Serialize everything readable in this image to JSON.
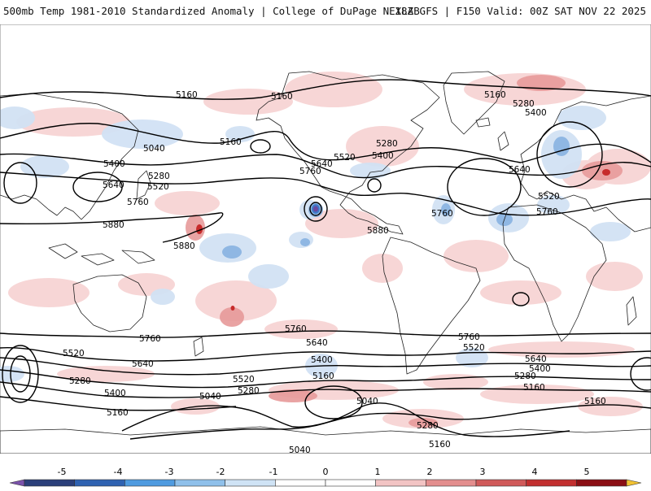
{
  "header": {
    "title_left": "500mb Temp 1981-2010 Standardized Anomaly | College of DuPage NEXLAB",
    "title_right": "18Z GFS | F150 Valid: 00Z SAT NOV 22 2025"
  },
  "map": {
    "projection": "equirectangular-global",
    "fill_variable": "temperature standardized anomaly",
    "contour_variable": "500mb geopotential height",
    "colors": {
      "ocean": "#ffffff",
      "coast": "#222222",
      "contour": "#000000",
      "warm_light": "#f7d4d4",
      "warm_mid": "#e79a9a",
      "warm_strong": "#c72b2b",
      "cold_light": "#d2e2f4",
      "cold_mid": "#8fb7e3",
      "cold_strong": "#3f79c8",
      "cold_deep": "#6a4aa0"
    },
    "contour_labels": [
      {
        "id": "c1",
        "text": "5160"
      },
      {
        "id": "c2",
        "text": "5160"
      },
      {
        "id": "c3",
        "text": "5160"
      },
      {
        "id": "c4",
        "text": "5280"
      },
      {
        "id": "c5",
        "text": "5400"
      },
      {
        "id": "c6",
        "text": "5040"
      },
      {
        "id": "c7",
        "text": "5160"
      },
      {
        "id": "c8",
        "text": "5400"
      },
      {
        "id": "c9",
        "text": "5280"
      },
      {
        "id": "c10",
        "text": "5520"
      },
      {
        "id": "c11",
        "text": "5640"
      },
      {
        "id": "c12",
        "text": "5760"
      },
      {
        "id": "c13",
        "text": "5880"
      },
      {
        "id": "c14",
        "text": "5880"
      },
      {
        "id": "c15",
        "text": "5520"
      },
      {
        "id": "c16",
        "text": "5400"
      },
      {
        "id": "c17",
        "text": "5640"
      },
      {
        "id": "c18",
        "text": "5760"
      },
      {
        "id": "c19",
        "text": "5280"
      },
      {
        "id": "c20",
        "text": "5880"
      },
      {
        "id": "c21",
        "text": "5760"
      },
      {
        "id": "c22",
        "text": "5640"
      },
      {
        "id": "c23",
        "text": "5520"
      },
      {
        "id": "c24",
        "text": "5760"
      },
      {
        "id": "c25",
        "text": "5760"
      },
      {
        "id": "c26",
        "text": "5520"
      },
      {
        "id": "c27",
        "text": "5640"
      },
      {
        "id": "c28",
        "text": "5280"
      },
      {
        "id": "c29",
        "text": "5400"
      },
      {
        "id": "c30",
        "text": "5160"
      },
      {
        "id": "c31",
        "text": "5040"
      },
      {
        "id": "c32",
        "text": "5520"
      },
      {
        "id": "c33",
        "text": "5280"
      },
      {
        "id": "c34",
        "text": "5760"
      },
      {
        "id": "c35",
        "text": "5640"
      },
      {
        "id": "c36",
        "text": "5400"
      },
      {
        "id": "c37",
        "text": "5160"
      },
      {
        "id": "c38",
        "text": "5040"
      },
      {
        "id": "c39",
        "text": "5040"
      },
      {
        "id": "c40",
        "text": "5760"
      },
      {
        "id": "c41",
        "text": "5520"
      },
      {
        "id": "c42",
        "text": "5640"
      },
      {
        "id": "c43",
        "text": "5400"
      },
      {
        "id": "c44",
        "text": "5280"
      },
      {
        "id": "c45",
        "text": "5160"
      },
      {
        "id": "c46",
        "text": "5160"
      },
      {
        "id": "c47",
        "text": "5280"
      },
      {
        "id": "c48",
        "text": "5160"
      }
    ]
  },
  "colorbar": {
    "ticks": [
      "-5",
      "-4",
      "-3",
      "-2",
      "-1",
      "0",
      "1",
      "2",
      "3",
      "4",
      "5"
    ],
    "segment_colors": [
      "#7b52ab",
      "#2b3f7a",
      "#2f62b1",
      "#4f9be0",
      "#8fc0ea",
      "#cfe3f5",
      "#ffffff",
      "#ffffff",
      "#f2c4c4",
      "#e38e8e",
      "#d05a5a",
      "#c22f2f",
      "#8b0f14",
      "#f2c232"
    ]
  }
}
